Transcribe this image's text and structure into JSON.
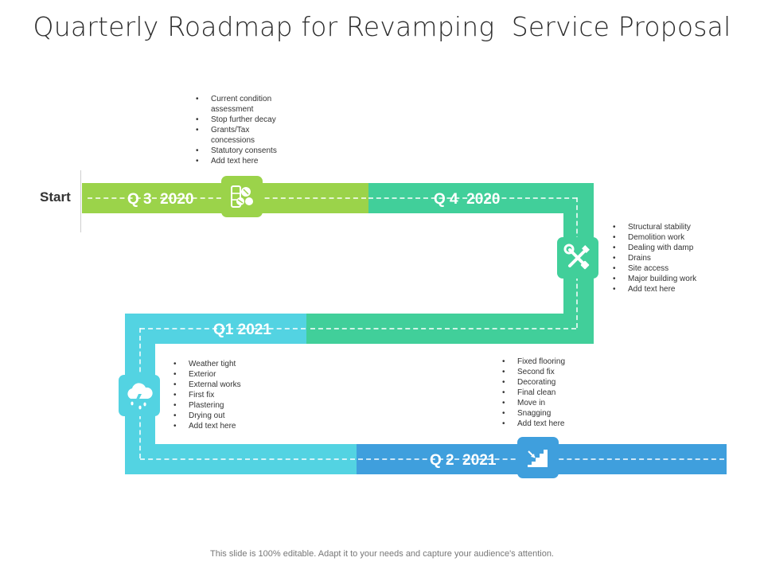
{
  "title": "Quarterly Roadmap for Revamping  Service Proposal",
  "start_label": "Start",
  "colors": {
    "green": "#9bd34a",
    "teal": "#41cf9a",
    "cyan": "#53d3e2",
    "blue": "#3f9fdd"
  },
  "quarters": [
    {
      "label": "Q 3  2020",
      "icon": "construction-sign-icon",
      "items": [
        "Current condition assessment",
        "Stop further decay",
        "Grants/Tax concessions",
        "Statutory consents",
        "Add text here"
      ]
    },
    {
      "label": "Q 4  2020",
      "icon": "tools-icon",
      "items": [
        "Structural stability",
        "Demolition work",
        "Dealing with damp",
        "Drains",
        "Site access",
        "Major building work",
        "Add text here"
      ]
    },
    {
      "label": "Q1 2021",
      "icon": "storm-cloud-icon",
      "items": [
        "Weather tight",
        "Exterior",
        "External works",
        "First fix",
        "Plastering",
        "Drying out",
        "Add text here"
      ]
    },
    {
      "label": "Q 2  2021",
      "icon": "stairs-icon",
      "items": [
        "Fixed flooring",
        "Second fix",
        "Decorating",
        "Final clean",
        "Move in",
        "Snagging",
        "Add text here"
      ]
    }
  ],
  "footer": "This slide is 100% editable. Adapt it to your needs and capture your audience's attention."
}
